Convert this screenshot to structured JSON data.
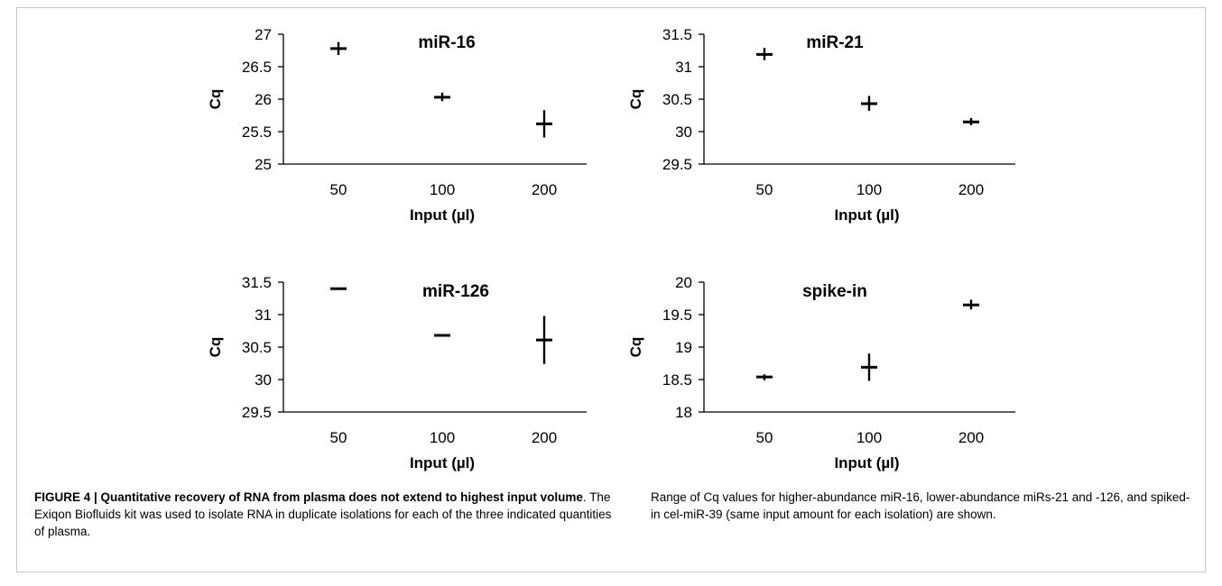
{
  "figure": {
    "caption_title": "FIGURE 4 | Quantitative recovery of RNA from plasma does not extend to highest input volume",
    "caption_left_rest": ". The Exiqon Biofluids kit was used to isolate RNA in duplicate isolations for each of the three indicated quantities of plasma.",
    "caption_right": "Range of Cq values for higher-abundance miR-16, lower-abundance miRs-21 and -126, and spiked-in cel-miR-39 (same input amount for each isolation) are shown."
  },
  "chart_data": [
    {
      "type": "scatter",
      "title": "miR-16",
      "xlabel": "Input (µl)",
      "ylabel": "Cq",
      "categories": [
        "50",
        "100",
        "200"
      ],
      "ylim": [
        25,
        27
      ],
      "yticks": [
        "25",
        "25.5",
        "26",
        "26.5",
        "27"
      ],
      "ytick_values": [
        25,
        25.5,
        26,
        26.5,
        27
      ],
      "points": [
        {
          "x": "50",
          "y": 26.78,
          "ymin": 26.68,
          "ymax": 26.88
        },
        {
          "x": "100",
          "y": 26.03,
          "ymin": 25.97,
          "ymax": 26.1
        },
        {
          "x": "200",
          "y": 25.62,
          "ymin": 25.41,
          "ymax": 25.83
        }
      ]
    },
    {
      "type": "scatter",
      "title": "miR-21",
      "xlabel": "Input (µl)",
      "ylabel": "Cq",
      "categories": [
        "50",
        "100",
        "200"
      ],
      "ylim": [
        29.5,
        31.5
      ],
      "yticks": [
        "29.5",
        "30",
        "30.5",
        "31",
        "31.5"
      ],
      "ytick_values": [
        29.5,
        30,
        30.5,
        31,
        31.5
      ],
      "points": [
        {
          "x": "50",
          "y": 31.19,
          "ymin": 31.1,
          "ymax": 31.29
        },
        {
          "x": "100",
          "y": 30.43,
          "ymin": 30.32,
          "ymax": 30.55
        },
        {
          "x": "200",
          "y": 30.15,
          "ymin": 30.1,
          "ymax": 30.21
        }
      ]
    },
    {
      "type": "scatter",
      "title": "miR-126",
      "xlabel": "Input (µl)",
      "ylabel": "Cq",
      "categories": [
        "50",
        "100",
        "200"
      ],
      "ylim": [
        29.5,
        31.5
      ],
      "yticks": [
        "29.5",
        "30",
        "30.5",
        "31",
        "31.5"
      ],
      "ytick_values": [
        29.5,
        30,
        30.5,
        31,
        31.5
      ],
      "points": [
        {
          "x": "50",
          "y": 31.4,
          "ymin": 31.4,
          "ymax": 31.4
        },
        {
          "x": "100",
          "y": 30.68,
          "ymin": 30.68,
          "ymax": 30.68
        },
        {
          "x": "200",
          "y": 30.61,
          "ymin": 30.24,
          "ymax": 30.98
        }
      ]
    },
    {
      "type": "scatter",
      "title": "spike-in",
      "xlabel": "Input (µl)",
      "ylabel": "Cq",
      "categories": [
        "50",
        "100",
        "200"
      ],
      "ylim": [
        18,
        20
      ],
      "yticks": [
        "18",
        "18.5",
        "19",
        "19.5",
        "20"
      ],
      "ytick_values": [
        18,
        18.5,
        19,
        19.5,
        20
      ],
      "points": [
        {
          "x": "50",
          "y": 18.54,
          "ymin": 18.49,
          "ymax": 18.58
        },
        {
          "x": "100",
          "y": 18.69,
          "ymin": 18.48,
          "ymax": 18.9
        },
        {
          "x": "200",
          "y": 19.65,
          "ymin": 19.58,
          "ymax": 19.73
        }
      ]
    }
  ]
}
